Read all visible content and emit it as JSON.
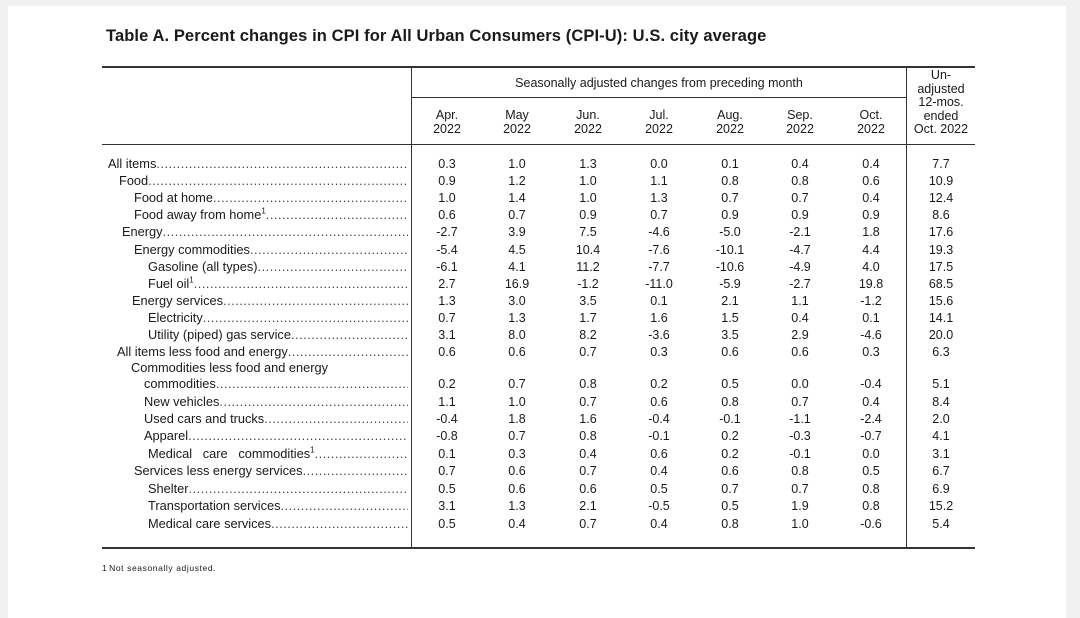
{
  "title": "Table A. Percent changes in CPI for All Urban Consumers (CPI-U): U.S. city average",
  "group_header": "Seasonally adjusted changes from preceding month",
  "columns": [
    {
      "month": "Apr.",
      "year": "2022"
    },
    {
      "month": "May",
      "year": "2022"
    },
    {
      "month": "Jun.",
      "year": "2022"
    },
    {
      "month": "Jul.",
      "year": "2022"
    },
    {
      "month": "Aug.",
      "year": "2022"
    },
    {
      "month": "Sep.",
      "year": "2022"
    },
    {
      "month": "Oct.",
      "year": "2022"
    }
  ],
  "unadjusted_header": [
    "Un-",
    "adjusted",
    "12-mos.",
    "ended",
    "Oct. 2022"
  ],
  "rows": [
    {
      "label": "All items",
      "values": [
        "0.3",
        "1.0",
        "1.3",
        "0.0",
        "0.1",
        "0.4",
        "0.4",
        "7.7"
      ]
    },
    {
      "label": "Food",
      "values": [
        "0.9",
        "1.2",
        "1.0",
        "1.1",
        "0.8",
        "0.8",
        "0.6",
        "10.9"
      ]
    },
    {
      "label": "Food at home",
      "values": [
        "1.0",
        "1.4",
        "1.0",
        "1.3",
        "0.7",
        "0.7",
        "0.4",
        "12.4"
      ]
    },
    {
      "label": "Food away from home",
      "sup": "1",
      "values": [
        "0.6",
        "0.7",
        "0.9",
        "0.7",
        "0.9",
        "0.9",
        "0.9",
        "8.6"
      ]
    },
    {
      "label": "Energy",
      "values": [
        "-2.7",
        "3.9",
        "7.5",
        "-4.6",
        "-5.0",
        "-2.1",
        "1.8",
        "17.6"
      ]
    },
    {
      "label": "Energy commodities",
      "values": [
        "-5.4",
        "4.5",
        "10.4",
        "-7.6",
        "-10.1",
        "-4.7",
        "4.4",
        "19.3"
      ]
    },
    {
      "label": "Gasoline (all types)",
      "values": [
        "-6.1",
        "4.1",
        "11.2",
        "-7.7",
        "-10.6",
        "-4.9",
        "4.0",
        "17.5"
      ]
    },
    {
      "label": "Fuel oil",
      "sup": "1",
      "values": [
        "2.7",
        "16.9",
        "-1.2",
        "-11.0",
        "-5.9",
        "-2.7",
        "19.8",
        "68.5"
      ]
    },
    {
      "label": "Energy services",
      "values": [
        "1.3",
        "3.0",
        "3.5",
        "0.1",
        "2.1",
        "1.1",
        "-1.2",
        "15.6"
      ]
    },
    {
      "label": "Electricity",
      "values": [
        "0.7",
        "1.3",
        "1.7",
        "1.6",
        "1.5",
        "0.4",
        "0.1",
        "14.1"
      ]
    },
    {
      "label": "Utility (piped) gas service",
      "values": [
        "3.1",
        "8.0",
        "8.2",
        "-3.6",
        "3.5",
        "2.9",
        "-4.6",
        "20.0"
      ]
    },
    {
      "label": "All items less food and energy",
      "values": [
        "0.6",
        "0.6",
        "0.7",
        "0.3",
        "0.6",
        "0.6",
        "0.3",
        "6.3"
      ]
    },
    {
      "label": "Commodities less food and energy",
      "label2": "commodities",
      "values": [
        "0.2",
        "0.7",
        "0.8",
        "0.2",
        "0.5",
        "0.0",
        "-0.4",
        "5.1"
      ]
    },
    {
      "label": "New vehicles",
      "values": [
        "1.1",
        "1.0",
        "0.7",
        "0.6",
        "0.8",
        "0.7",
        "0.4",
        "8.4"
      ]
    },
    {
      "label": "Used cars and trucks",
      "values": [
        "-0.4",
        "1.8",
        "1.6",
        "-0.4",
        "-0.1",
        "-1.1",
        "-2.4",
        "2.0"
      ]
    },
    {
      "label": "Apparel",
      "values": [
        "-0.8",
        "0.7",
        "0.8",
        "-0.1",
        "0.2",
        "-0.3",
        "-0.7",
        "4.1"
      ]
    },
    {
      "label": "Medical   care   commodities",
      "sup": "1",
      "values": [
        "0.1",
        "0.3",
        "0.4",
        "0.6",
        "0.2",
        "-0.1",
        "0.0",
        "3.1"
      ]
    },
    {
      "label": "Services less energy services",
      "values": [
        "0.7",
        "0.6",
        "0.7",
        "0.4",
        "0.6",
        "0.8",
        "0.5",
        "6.7"
      ]
    },
    {
      "label": "Shelter",
      "values": [
        "0.5",
        "0.6",
        "0.6",
        "0.5",
        "0.7",
        "0.7",
        "0.8",
        "6.9"
      ]
    },
    {
      "label": "Transportation services",
      "values": [
        "3.1",
        "1.3",
        "2.1",
        "-0.5",
        "0.5",
        "1.9",
        "0.8",
        "15.2"
      ]
    },
    {
      "label": "Medical care services",
      "values": [
        "0.5",
        "0.4",
        "0.7",
        "0.4",
        "0.8",
        "1.0",
        "-0.6",
        "5.4"
      ]
    }
  ],
  "footnote": {
    "marker": "1",
    "text": "Not seasonally adjusted."
  }
}
